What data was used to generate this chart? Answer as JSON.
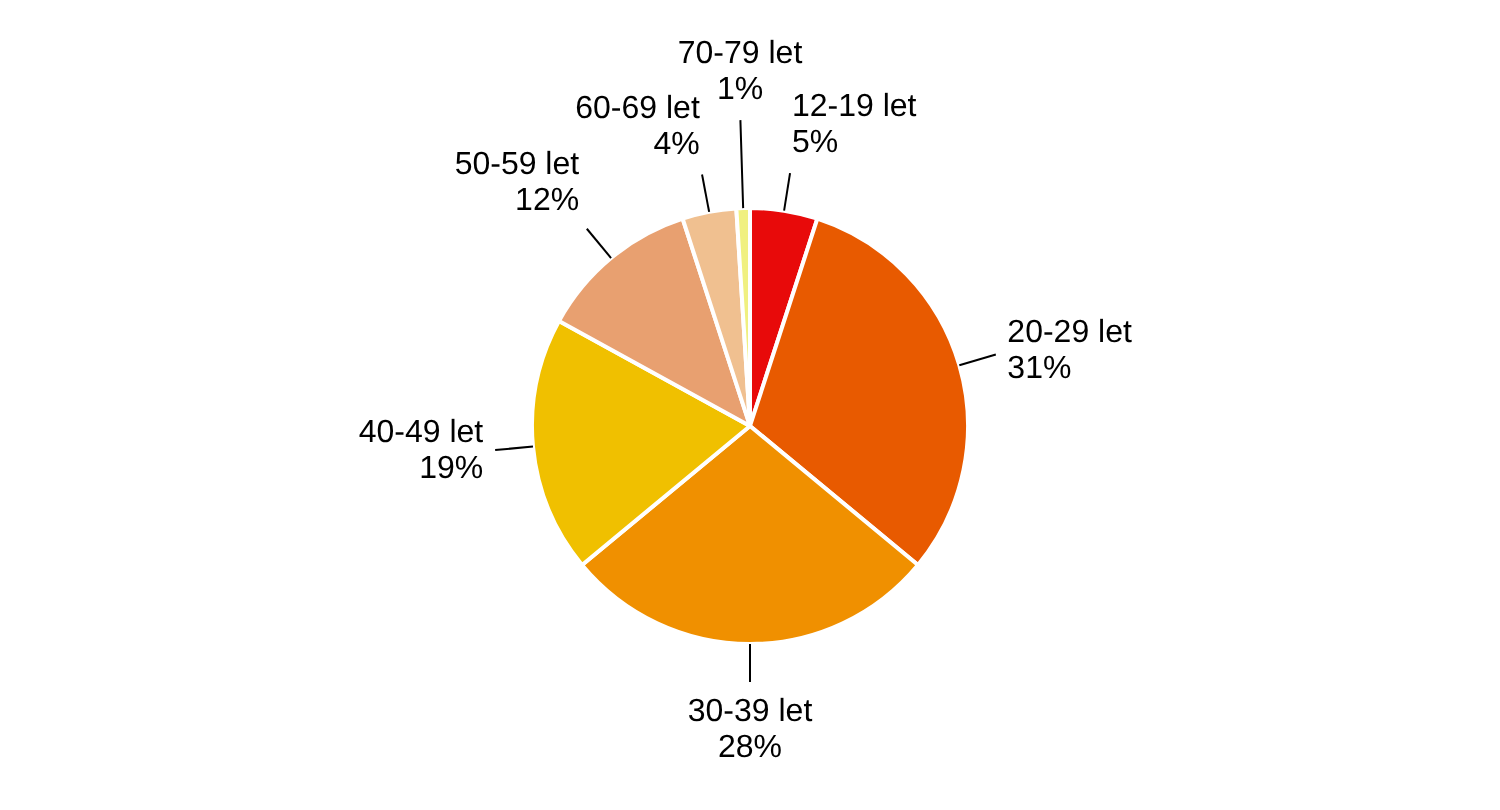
{
  "chart_data": {
    "type": "pie",
    "categories": [
      "12-19 let",
      "20-29 let",
      "30-39 let",
      "40-49 let",
      "50-59 let",
      "60-69 let",
      "70-79 let"
    ],
    "values": [
      5,
      31,
      28,
      19,
      12,
      4,
      1
    ],
    "value_labels": [
      "5%",
      "31%",
      "28%",
      "19%",
      "12%",
      "4%",
      "1%"
    ],
    "colors": [
      "#e80a0a",
      "#e85a00",
      "#f09000",
      "#f0c000",
      "#e8a070",
      "#f0c090",
      "#f0f080"
    ],
    "legend": false
  }
}
